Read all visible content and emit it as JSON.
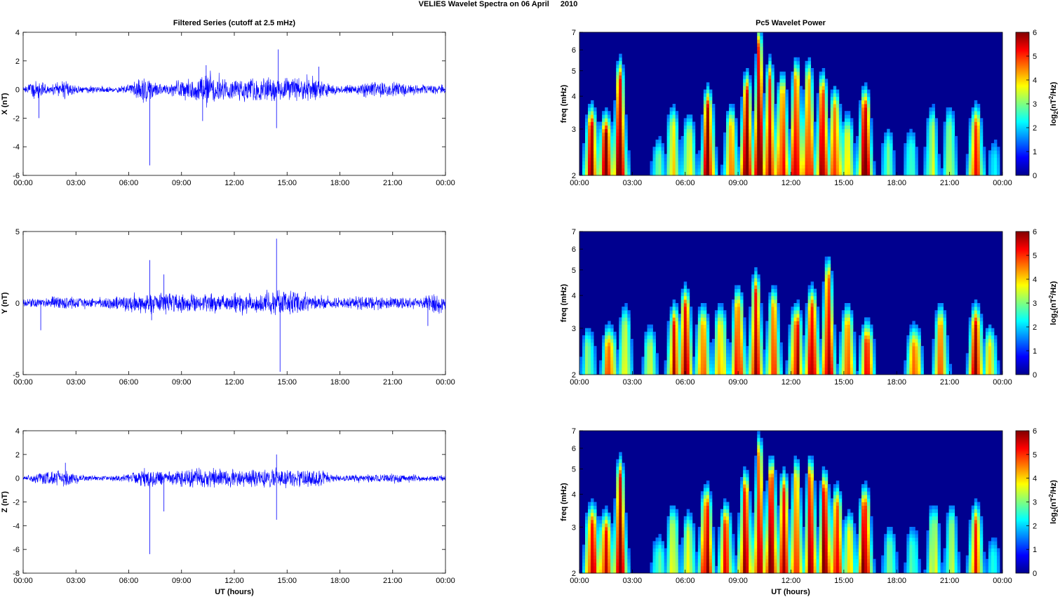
{
  "figure": {
    "title_station": "VELIES Wavelet Spectra on 06 April",
    "title_year": "2010",
    "left_column_title": "Filtered Series (cutoff at 2.5 mHz)",
    "right_column_title": "Pc5 Wavelet Power",
    "xlabel": "UT (hours)"
  },
  "chart_data": [
    {
      "type": "line",
      "panel": "X",
      "ylabel": "X (nT)",
      "xlim": [
        "00:00",
        "24:00"
      ],
      "ylim": [
        -6,
        4
      ],
      "yticks": [
        -6,
        -4,
        -2,
        0,
        2,
        4
      ],
      "xticks": [
        "00:00",
        "03:00",
        "06:00",
        "09:00",
        "12:00",
        "15:00",
        "18:00",
        "21:00",
        "00:00"
      ],
      "series_color": "#0000ff",
      "activity_levels": [
        [
          0,
          0.15
        ],
        [
          0.8,
          0.8
        ],
        [
          1.5,
          0.3
        ],
        [
          2.3,
          0.7
        ],
        [
          3.2,
          0.25
        ],
        [
          5.5,
          0.25
        ],
        [
          7.0,
          0.9
        ],
        [
          8.0,
          0.4
        ],
        [
          9.0,
          0.8
        ],
        [
          10.5,
          1.1
        ],
        [
          12.3,
          0.8
        ],
        [
          14.5,
          0.9
        ],
        [
          16.5,
          0.9
        ],
        [
          18,
          0.25
        ],
        [
          19.5,
          0.6
        ],
        [
          21.5,
          0.55
        ],
        [
          22.5,
          0.3
        ],
        [
          24,
          0.4
        ]
      ],
      "spikes": [
        [
          7.2,
          -5.3
        ],
        [
          10.4,
          1.7
        ],
        [
          14.5,
          2.8
        ],
        [
          14.4,
          -2.7
        ],
        [
          16.8,
          1.6
        ],
        [
          0.9,
          -2.0
        ],
        [
          10.2,
          -2.2
        ]
      ]
    },
    {
      "type": "line",
      "panel": "Y",
      "ylabel": "Y (nT)",
      "xlim": [
        "00:00",
        "24:00"
      ],
      "ylim": [
        -5,
        5
      ],
      "yticks": [
        -5,
        0,
        5
      ],
      "xticks": [
        "00:00",
        "03:00",
        "06:00",
        "09:00",
        "12:00",
        "15:00",
        "18:00",
        "21:00",
        "00:00"
      ],
      "series_color": "#0000ff",
      "activity_levels": [
        [
          0,
          0.3
        ],
        [
          1,
          0.4
        ],
        [
          2.5,
          0.5
        ],
        [
          4,
          0.35
        ],
        [
          6,
          0.6
        ],
        [
          7.2,
          0.9
        ],
        [
          9,
          0.7
        ],
        [
          11,
          0.7
        ],
        [
          13,
          0.7
        ],
        [
          14.5,
          1.0
        ],
        [
          16,
          0.7
        ],
        [
          18,
          0.35
        ],
        [
          19.5,
          0.6
        ],
        [
          21,
          0.45
        ],
        [
          22.5,
          0.35
        ],
        [
          23.5,
          0.8
        ],
        [
          24,
          0.8
        ]
      ],
      "spikes": [
        [
          7.2,
          3.0
        ],
        [
          8.0,
          2.0
        ],
        [
          14.4,
          4.5
        ],
        [
          14.6,
          -4.8
        ],
        [
          1.0,
          -1.9
        ],
        [
          7.3,
          -1.2
        ],
        [
          23.0,
          -1.6
        ]
      ]
    },
    {
      "type": "line",
      "panel": "Z",
      "ylabel": "Z (nT)",
      "xlim": [
        "00:00",
        "24:00"
      ],
      "ylim": [
        -8,
        4
      ],
      "yticks": [
        -8,
        -6,
        -4,
        -2,
        0,
        2,
        4
      ],
      "xticks": [
        "00:00",
        "03:00",
        "06:00",
        "09:00",
        "12:00",
        "15:00",
        "18:00",
        "21:00",
        "00:00"
      ],
      "series_color": "#0000ff",
      "activity_levels": [
        [
          0,
          0.2
        ],
        [
          1,
          0.6
        ],
        [
          2.3,
          0.7
        ],
        [
          3.5,
          0.25
        ],
        [
          5.5,
          0.25
        ],
        [
          7.2,
          0.9
        ],
        [
          8,
          0.5
        ],
        [
          9.5,
          0.9
        ],
        [
          11,
          0.9
        ],
        [
          12.5,
          0.8
        ],
        [
          14.5,
          0.8
        ],
        [
          16.8,
          0.8
        ],
        [
          18,
          0.25
        ],
        [
          20,
          0.45
        ],
        [
          21.5,
          0.4
        ],
        [
          23,
          0.25
        ],
        [
          24,
          0.3
        ]
      ],
      "spikes": [
        [
          7.2,
          -6.4
        ],
        [
          8.0,
          -2.8
        ],
        [
          14.4,
          -3.5
        ],
        [
          14.4,
          2.0
        ],
        [
          2.4,
          1.3
        ]
      ]
    },
    {
      "type": "heatmap",
      "panel": "X",
      "ylabel": "freq (mHz)",
      "yscale": "log",
      "ylim": [
        2,
        7
      ],
      "yticks": [
        2,
        3,
        4,
        5,
        6,
        7
      ],
      "xticks": [
        "00:00",
        "03:00",
        "06:00",
        "09:00",
        "12:00",
        "15:00",
        "18:00",
        "21:00",
        "00:00"
      ],
      "colorbar_label": "log2(nT2/Hz)",
      "colorbar_ticks": [
        0,
        1,
        2,
        3,
        4,
        5,
        6
      ],
      "colormap": "jet",
      "bursts": [
        [
          0.7,
          3,
          0.95
        ],
        [
          1.5,
          2.8,
          0.95
        ],
        [
          2.3,
          4.5,
          1.0
        ],
        [
          4.5,
          2.3,
          0.4
        ],
        [
          5.3,
          3.0,
          0.6
        ],
        [
          6.2,
          2.8,
          0.6
        ],
        [
          7.3,
          3.5,
          1.0
        ],
        [
          8.6,
          3.0,
          0.7
        ],
        [
          9.5,
          4.0,
          1.0
        ],
        [
          10.2,
          6.0,
          1.0
        ],
        [
          10.8,
          4.5,
          1.0
        ],
        [
          11.5,
          4.0,
          0.9
        ],
        [
          12.3,
          4.5,
          1.0
        ],
        [
          13.0,
          4.5,
          0.9
        ],
        [
          13.8,
          4.0,
          1.0
        ],
        [
          14.5,
          3.5,
          0.9
        ],
        [
          15.2,
          2.8,
          0.6
        ],
        [
          16.2,
          3.5,
          1.0
        ],
        [
          17.5,
          2.5,
          0.4
        ],
        [
          18.8,
          2.5,
          0.4
        ],
        [
          20.0,
          3.0,
          0.5
        ],
        [
          21.0,
          3.0,
          0.5
        ],
        [
          22.5,
          3.0,
          0.85
        ],
        [
          23.5,
          2.3,
          0.3
        ]
      ]
    },
    {
      "type": "heatmap",
      "panel": "Y",
      "ylabel": "freq (mHz)",
      "yscale": "log",
      "ylim": [
        2,
        7
      ],
      "yticks": [
        2,
        3,
        4,
        5,
        6,
        7
      ],
      "xticks": [
        "00:00",
        "03:00",
        "06:00",
        "09:00",
        "12:00",
        "15:00",
        "18:00",
        "21:00",
        "00:00"
      ],
      "colorbar_label": "log2(nT2/Hz)",
      "colorbar_ticks": [
        0,
        1,
        2,
        3,
        4,
        5,
        6
      ],
      "colormap": "jet",
      "bursts": [
        [
          0.5,
          2.5,
          0.45
        ],
        [
          1.7,
          2.5,
          0.8
        ],
        [
          2.6,
          3.0,
          0.6
        ],
        [
          4.0,
          2.5,
          0.5
        ],
        [
          5.4,
          3.0,
          0.9
        ],
        [
          6.0,
          3.5,
          0.9
        ],
        [
          7.0,
          3.0,
          0.8
        ],
        [
          8.0,
          3.0,
          0.7
        ],
        [
          9.0,
          3.5,
          0.9
        ],
        [
          10.0,
          4.0,
          1.0
        ],
        [
          11.0,
          3.5,
          0.85
        ],
        [
          12.3,
          3.0,
          0.95
        ],
        [
          13.2,
          3.5,
          0.95
        ],
        [
          14.1,
          4.5,
          1.0
        ],
        [
          15.2,
          3.0,
          0.85
        ],
        [
          16.3,
          2.6,
          0.85
        ],
        [
          19.0,
          2.5,
          0.85
        ],
        [
          20.5,
          3.0,
          0.8
        ],
        [
          22.5,
          3.0,
          1.0
        ],
        [
          23.3,
          2.5,
          0.6
        ]
      ]
    },
    {
      "type": "heatmap",
      "panel": "Z",
      "ylabel": "freq (mHz)",
      "yscale": "log",
      "ylim": [
        2,
        7
      ],
      "yticks": [
        2,
        3,
        4,
        5,
        6,
        7
      ],
      "xticks": [
        "00:00",
        "03:00",
        "06:00",
        "09:00",
        "12:00",
        "15:00",
        "18:00",
        "21:00",
        "00:00"
      ],
      "colorbar_label": "log2(nT2/Hz)",
      "colorbar_ticks": [
        0,
        1,
        2,
        3,
        4,
        5,
        6
      ],
      "colormap": "jet",
      "bursts": [
        [
          0.7,
          3,
          0.95
        ],
        [
          1.5,
          2.8,
          0.95
        ],
        [
          2.3,
          4.5,
          1.0
        ],
        [
          4.5,
          2.3,
          0.4
        ],
        [
          5.3,
          3.0,
          0.55
        ],
        [
          6.2,
          2.8,
          0.55
        ],
        [
          7.2,
          3.5,
          1.0
        ],
        [
          8.3,
          3.0,
          0.8
        ],
        [
          9.4,
          4.0,
          1.0
        ],
        [
          10.2,
          5.5,
          1.0
        ],
        [
          10.9,
          4.5,
          1.0
        ],
        [
          11.6,
          4.0,
          0.9
        ],
        [
          12.3,
          4.5,
          0.95
        ],
        [
          13.1,
          4.5,
          0.9
        ],
        [
          13.9,
          4.0,
          0.95
        ],
        [
          14.6,
          3.5,
          0.85
        ],
        [
          15.3,
          2.8,
          0.6
        ],
        [
          16.2,
          3.5,
          1.0
        ],
        [
          17.6,
          2.5,
          0.4
        ],
        [
          18.9,
          2.5,
          0.4
        ],
        [
          20.1,
          3.0,
          0.55
        ],
        [
          21.1,
          3.0,
          0.5
        ],
        [
          22.5,
          3.0,
          0.8
        ],
        [
          23.5,
          2.3,
          0.3
        ]
      ]
    }
  ]
}
